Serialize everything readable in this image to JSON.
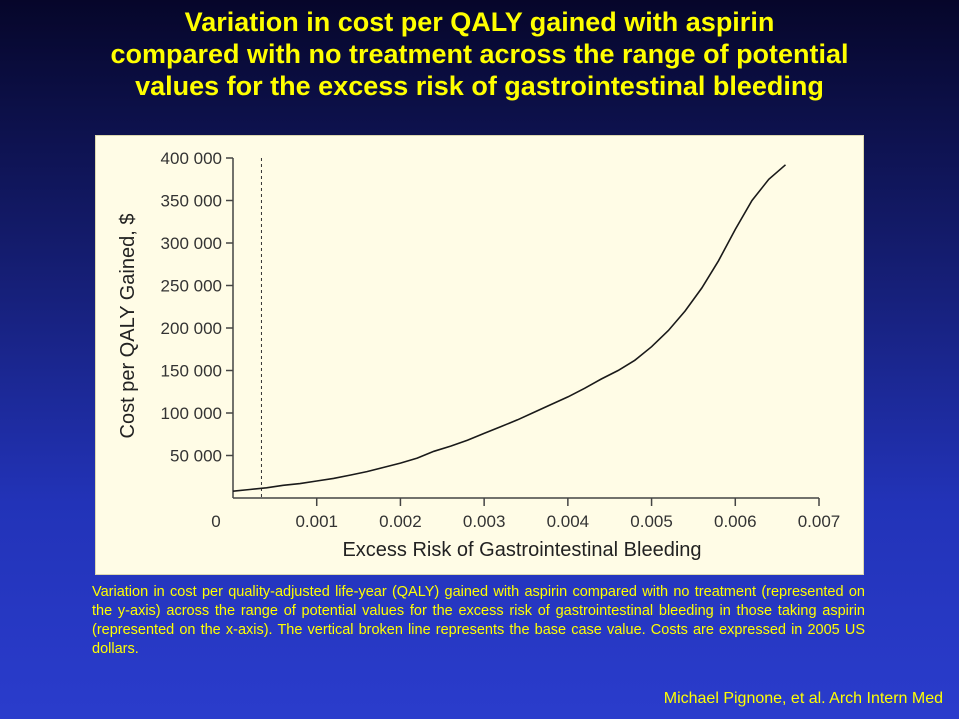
{
  "slide": {
    "title_lines": [
      "Variation in cost per QALY gained with aspirin",
      "compared with no treatment across the range of potential",
      "values for the excess risk of gastrointestinal bleeding"
    ],
    "caption": "Variation in cost per quality-adjusted life-year (QALY) gained with aspirin compared with no treatment (represented on the y-axis) across the range of potential values for the excess risk of gastrointestinal bleeding in those taking aspirin (represented on the x-axis). The vertical broken line represents the base case value. Costs are expressed in 2005 US dollars.",
    "citation": "Michael Pignone, et al. Arch Intern Med"
  },
  "colors": {
    "title_text": "#ffff00",
    "chart_background": "#fffce6",
    "curve": "#1a1a1a"
  },
  "chart_data": {
    "type": "line",
    "xlabel": "Excess Risk of Gastrointestinal Bleeding",
    "ylabel": "Cost per QALY Gained, $",
    "xlim": [
      0,
      0.007
    ],
    "ylim": [
      0,
      400000
    ],
    "x_ticks": [
      {
        "value": 0,
        "label": "0"
      },
      {
        "value": 0.001,
        "label": "0.001"
      },
      {
        "value": 0.002,
        "label": "0.002"
      },
      {
        "value": 0.003,
        "label": "0.003"
      },
      {
        "value": 0.004,
        "label": "0.004"
      },
      {
        "value": 0.005,
        "label": "0.005"
      },
      {
        "value": 0.006,
        "label": "0.006"
      },
      {
        "value": 0.007,
        "label": "0.007"
      }
    ],
    "y_ticks": [
      {
        "value": 50000,
        "label": "50 000"
      },
      {
        "value": 100000,
        "label": "100 000"
      },
      {
        "value": 150000,
        "label": "150 000"
      },
      {
        "value": 200000,
        "label": "200 000"
      },
      {
        "value": 250000,
        "label": "250 000"
      },
      {
        "value": 300000,
        "label": "300 000"
      },
      {
        "value": 350000,
        "label": "350 000"
      },
      {
        "value": 400000,
        "label": "400 000"
      }
    ],
    "base_case_x": 0.00034,
    "series": [
      {
        "x": [
          0,
          0.0002,
          0.0004,
          0.0006,
          0.0008,
          0.001,
          0.0012,
          0.0014,
          0.0016,
          0.0018,
          0.002,
          0.0022,
          0.0024,
          0.0026,
          0.0028,
          0.003,
          0.0032,
          0.0034,
          0.0036,
          0.0038,
          0.004,
          0.0042,
          0.0044,
          0.0046,
          0.0048,
          0.005,
          0.0052,
          0.0054,
          0.0056,
          0.0058,
          0.006,
          0.0062,
          0.0064,
          0.0066
        ],
        "y": [
          8000,
          10000,
          12000,
          15000,
          17000,
          20000,
          23000,
          27000,
          31000,
          36000,
          41000,
          47000,
          55000,
          61000,
          68000,
          76000,
          84000,
          92000,
          101000,
          110000,
          119000,
          129000,
          140000,
          150000,
          162000,
          178000,
          197000,
          220000,
          247000,
          279000,
          316000,
          350000,
          375000,
          392000
        ]
      }
    ]
  }
}
